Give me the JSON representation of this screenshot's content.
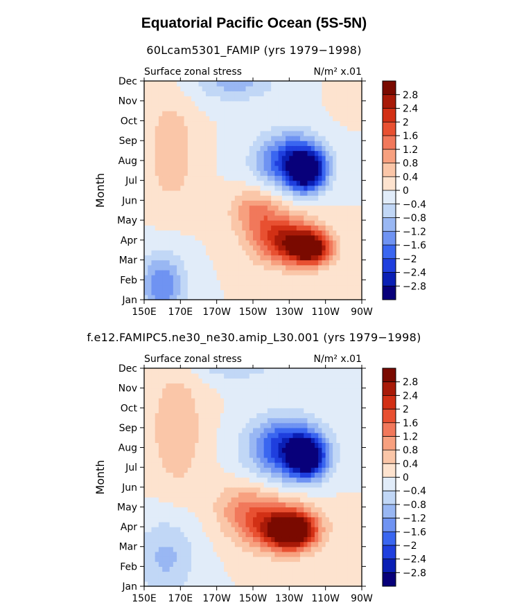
{
  "figure": {
    "title": "Equatorial Pacific Ocean (5S-5N)"
  },
  "colors": {
    "bar": [
      "#08007a",
      "#0a1fb4",
      "#1f3fde",
      "#3a66f0",
      "#6f93f2",
      "#99b7f3",
      "#c1d7f6",
      "#e1ecf9",
      "#fde3cf",
      "#fac6a8",
      "#f7a07f",
      "#f1785b",
      "#e85031",
      "#d23015",
      "#a81a08",
      "#7a0a00"
    ],
    "background": "#fde3cf"
  },
  "chart_data": [
    {
      "type": "heatmap",
      "title": "60Lcam5301_FAMIP (yrs 1979−1998)",
      "left_label": "Surface zonal stress",
      "right_label": "N/m² x.01",
      "ylabel": "Month",
      "x_ticks": [
        "150E",
        "170E",
        "170W",
        "150W",
        "130W",
        "110W",
        "90W"
      ],
      "x_range": [
        150,
        270
      ],
      "y_ticks": [
        "Jan",
        "Feb",
        "Mar",
        "Apr",
        "May",
        "Jun",
        "Jul",
        "Aug",
        "Sep",
        "Oct",
        "Nov",
        "Dec"
      ],
      "colorbar_levels": [
        "2.8",
        "2.4",
        "2",
        "1.6",
        "1.2",
        "0.8",
        "0.4",
        "0",
        "−0.4",
        "−0.8",
        "−1.2",
        "−1.6",
        "−2",
        "−2.4",
        "−2.8"
      ],
      "features": [
        {
          "lon": 240,
          "month": 6.5,
          "value": -3.0,
          "sx": 10,
          "sy": 1.0
        },
        {
          "lon": 230,
          "month": 7.0,
          "value": -2.2,
          "sx": 18,
          "sy": 1.4
        },
        {
          "lon": 242,
          "month": 2.6,
          "value": 3.0,
          "sx": 11,
          "sy": 0.8
        },
        {
          "lon": 228,
          "month": 3.0,
          "value": 2.4,
          "sx": 18,
          "sy": 1.2
        },
        {
          "lon": 212,
          "month": 4.5,
          "value": 1.2,
          "sx": 14,
          "sy": 1.1
        },
        {
          "lon": 160,
          "month": 0.8,
          "value": -1.6,
          "sx": 12,
          "sy": 1.5
        },
        {
          "lon": 165,
          "month": 7.5,
          "value": 0.8,
          "sx": 12,
          "sy": 2.5
        },
        {
          "lon": 200,
          "month": 11.0,
          "value": -1.0,
          "sx": 22,
          "sy": 1.0
        },
        {
          "lon": 262,
          "month": 10.5,
          "value": 0.3,
          "sx": 8,
          "sy": 1.2
        }
      ]
    },
    {
      "type": "heatmap",
      "title": "f.e12.FAMIPC5.ne30_ne30.amip_L30.001 (yrs 1979−1998)",
      "left_label": "Surface zonal stress",
      "right_label": "N/m² x.01",
      "ylabel": "Month",
      "x_ticks": [
        "150E",
        "170E",
        "170W",
        "150W",
        "130W",
        "110W",
        "90W"
      ],
      "x_range": [
        150,
        270
      ],
      "y_ticks": [
        "Jan",
        "Feb",
        "Mar",
        "Apr",
        "May",
        "Jun",
        "Jul",
        "Aug",
        "Sep",
        "Oct",
        "Nov",
        "Dec"
      ],
      "colorbar_levels": [
        "2.8",
        "2.4",
        "2",
        "1.6",
        "1.2",
        "0.8",
        "0.4",
        "0",
        "−0.4",
        "−0.8",
        "−1.2",
        "−1.6",
        "−2",
        "−2.4",
        "−2.8"
      ],
      "features": [
        {
          "lon": 240,
          "month": 6.5,
          "value": -3.0,
          "sx": 10,
          "sy": 1.0
        },
        {
          "lon": 228,
          "month": 7.0,
          "value": -2.4,
          "sx": 20,
          "sy": 1.5
        },
        {
          "lon": 232,
          "month": 2.8,
          "value": 3.0,
          "sx": 11,
          "sy": 0.8
        },
        {
          "lon": 225,
          "month": 3.0,
          "value": 2.4,
          "sx": 20,
          "sy": 1.2
        },
        {
          "lon": 205,
          "month": 4.0,
          "value": 1.0,
          "sx": 16,
          "sy": 1.2
        },
        {
          "lon": 162,
          "month": 1.5,
          "value": -0.9,
          "sx": 16,
          "sy": 2.0
        },
        {
          "lon": 168,
          "month": 8.0,
          "value": 0.8,
          "sx": 14,
          "sy": 3.0
        },
        {
          "lon": 200,
          "month": 11.3,
          "value": -0.8,
          "sx": 22,
          "sy": 0.9
        }
      ]
    }
  ]
}
